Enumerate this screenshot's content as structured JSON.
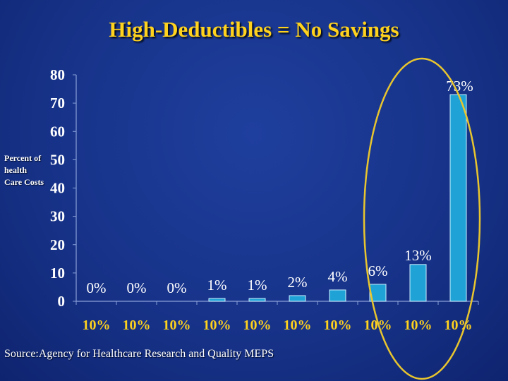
{
  "title": "High-Deductibles = No Savings",
  "source": "Source:Agency for Healthcare Research and Quality MEPS",
  "colors": {
    "background": "#173389",
    "title": "#ffd21e",
    "bar": "#1fa3d6",
    "highlight_oval": "#e8c52e",
    "text": "#ffffff"
  },
  "chart_data": {
    "type": "bar",
    "ylabel": "Percent of health Care Costs",
    "xlabel": "",
    "ylim": [
      0,
      80
    ],
    "yticks": [
      0,
      10,
      20,
      30,
      40,
      50,
      60,
      70,
      80
    ],
    "categories": [
      "10%",
      "10%",
      "10%",
      "10%",
      "10%",
      "10%",
      "10%",
      "10%",
      "10%",
      "10%"
    ],
    "values": [
      0,
      0,
      0,
      1,
      1,
      2,
      4,
      6,
      13,
      73
    ],
    "data_labels": [
      "0%",
      "0%",
      "0%",
      "1%",
      "1%",
      "2%",
      "4%",
      "6%",
      "13%",
      "73%"
    ],
    "grid": false,
    "legend": "none",
    "highlight": "last three bars circled"
  }
}
